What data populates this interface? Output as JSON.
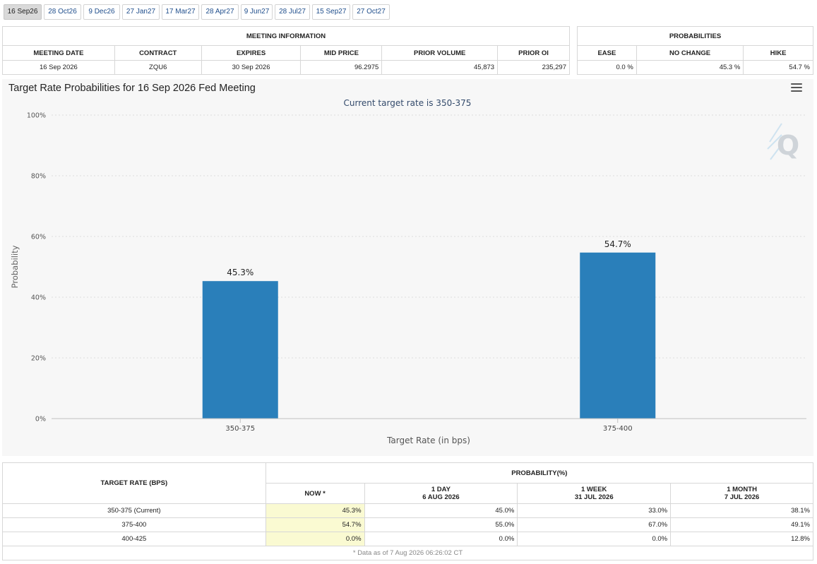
{
  "tabs": [
    "16 Sep26",
    "28 Oct26",
    "9 Dec26",
    "27 Jan27",
    "17 Mar27",
    "28 Apr27",
    "9 Jun27",
    "28 Jul27",
    "15 Sep27",
    "27 Oct27"
  ],
  "meeting": {
    "title": "MEETING INFORMATION",
    "headers": [
      "MEETING DATE",
      "CONTRACT",
      "EXPIRES",
      "MID PRICE",
      "PRIOR VOLUME",
      "PRIOR OI"
    ],
    "row": [
      "16 Sep 2026",
      "ZQU6",
      "30 Sep 2026",
      "96.2975",
      "45,873",
      "235,297"
    ]
  },
  "probabilities": {
    "title": "PROBABILITIES",
    "headers": [
      "EASE",
      "NO CHANGE",
      "HIKE"
    ],
    "row": [
      "0.0 %",
      "45.3 %",
      "54.7 %"
    ]
  },
  "chart_data": {
    "type": "bar",
    "title": "Target Rate Probabilities for 16 Sep 2026 Fed Meeting",
    "subtitle": "Current target rate is 350-375",
    "xlabel": "Target Rate (in bps)",
    "ylabel": "Probability",
    "categories": [
      "350-375",
      "375-400"
    ],
    "values": [
      45.3,
      54.7
    ],
    "data_labels": [
      "45.3%",
      "54.7%"
    ],
    "ylim": [
      0,
      100
    ],
    "yticks": [
      0,
      20,
      40,
      60,
      80,
      100
    ],
    "ytick_labels": [
      "0%",
      "20%",
      "40%",
      "60%",
      "80%",
      "100%"
    ],
    "grid": true,
    "bar_color": "#2a7fba"
  },
  "bottom": {
    "target_header": "TARGET RATE (BPS)",
    "prob_header": "PROBABILITY(%)",
    "cols": [
      {
        "line1": "NOW *",
        "line2": ""
      },
      {
        "line1": "1 DAY",
        "line2": "6 AUG 2026"
      },
      {
        "line1": "1 WEEK",
        "line2": "31 JUL 2026"
      },
      {
        "line1": "1 MONTH",
        "line2": "7 JUL 2026"
      }
    ],
    "rows": [
      {
        "rate": "350-375 (Current)",
        "vals": [
          "45.3%",
          "45.0%",
          "33.0%",
          "38.1%"
        ]
      },
      {
        "rate": "375-400",
        "vals": [
          "54.7%",
          "55.0%",
          "67.0%",
          "49.1%"
        ]
      },
      {
        "rate": "400-425",
        "vals": [
          "0.0%",
          "0.0%",
          "0.0%",
          "12.8%"
        ]
      }
    ],
    "footnote": "* Data as of 7 Aug 2026 06:26:02 CT"
  }
}
